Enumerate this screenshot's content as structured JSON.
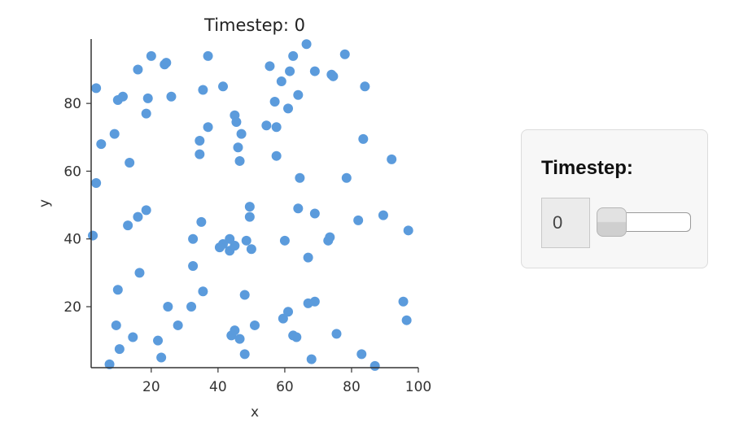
{
  "chart_data": {
    "type": "scatter",
    "title": "Timestep: 0",
    "xlabel": "x",
    "ylabel": "y",
    "xlim": [
      2,
      100
    ],
    "ylim": [
      2,
      99
    ],
    "xticks": [
      20,
      40,
      60,
      80,
      100
    ],
    "yticks": [
      20,
      40,
      60,
      80
    ],
    "xtick_labels": [
      "20",
      "40",
      "60",
      "80",
      "100"
    ],
    "ytick_labels": [
      "20",
      "40",
      "60",
      "80"
    ],
    "point_color": "#5b9bdc",
    "grid": false,
    "points": [
      {
        "x": 3.5,
        "y": 84.5
      },
      {
        "x": 3.5,
        "y": 56.5
      },
      {
        "x": 2.5,
        "y": 41
      },
      {
        "x": 5,
        "y": 68
      },
      {
        "x": 9,
        "y": 71
      },
      {
        "x": 10,
        "y": 81
      },
      {
        "x": 11.5,
        "y": 82
      },
      {
        "x": 13.5,
        "y": 62.5
      },
      {
        "x": 16,
        "y": 90
      },
      {
        "x": 20,
        "y": 94
      },
      {
        "x": 19,
        "y": 81.5
      },
      {
        "x": 18.5,
        "y": 77
      },
      {
        "x": 24,
        "y": 91.5
      },
      {
        "x": 24.5,
        "y": 92
      },
      {
        "x": 26,
        "y": 82
      },
      {
        "x": 13,
        "y": 44
      },
      {
        "x": 16,
        "y": 46.5
      },
      {
        "x": 18.5,
        "y": 48.5
      },
      {
        "x": 16.5,
        "y": 30
      },
      {
        "x": 10,
        "y": 25
      },
      {
        "x": 9.5,
        "y": 14.5
      },
      {
        "x": 10.5,
        "y": 7.5
      },
      {
        "x": 7.5,
        "y": 3
      },
      {
        "x": 14.5,
        "y": 11
      },
      {
        "x": 22,
        "y": 10
      },
      {
        "x": 23,
        "y": 5
      },
      {
        "x": 25,
        "y": 20
      },
      {
        "x": 28,
        "y": 14.5
      },
      {
        "x": 37,
        "y": 94
      },
      {
        "x": 35.5,
        "y": 84
      },
      {
        "x": 41.5,
        "y": 85
      },
      {
        "x": 37,
        "y": 73
      },
      {
        "x": 34.5,
        "y": 69
      },
      {
        "x": 34.5,
        "y": 65
      },
      {
        "x": 45,
        "y": 76.5
      },
      {
        "x": 45.5,
        "y": 74.5
      },
      {
        "x": 47,
        "y": 71
      },
      {
        "x": 46,
        "y": 67
      },
      {
        "x": 46.5,
        "y": 63
      },
      {
        "x": 32.5,
        "y": 40
      },
      {
        "x": 35,
        "y": 45
      },
      {
        "x": 41.5,
        "y": 38.5
      },
      {
        "x": 40.5,
        "y": 37.5
      },
      {
        "x": 43.5,
        "y": 40
      },
      {
        "x": 43.5,
        "y": 36.5
      },
      {
        "x": 45,
        "y": 38
      },
      {
        "x": 48.5,
        "y": 39.5
      },
      {
        "x": 50,
        "y": 37
      },
      {
        "x": 49.5,
        "y": 49.5
      },
      {
        "x": 49.5,
        "y": 46.5
      },
      {
        "x": 32.5,
        "y": 32
      },
      {
        "x": 35.5,
        "y": 24.5
      },
      {
        "x": 32,
        "y": 20
      },
      {
        "x": 48,
        "y": 23.5
      },
      {
        "x": 44,
        "y": 11.5
      },
      {
        "x": 45,
        "y": 13
      },
      {
        "x": 46.5,
        "y": 10.5
      },
      {
        "x": 48,
        "y": 6
      },
      {
        "x": 51,
        "y": 14.5
      },
      {
        "x": 55.5,
        "y": 91
      },
      {
        "x": 59,
        "y": 86.5
      },
      {
        "x": 61.5,
        "y": 89.5
      },
      {
        "x": 62.5,
        "y": 94
      },
      {
        "x": 66.5,
        "y": 97.5
      },
      {
        "x": 69,
        "y": 89.5
      },
      {
        "x": 57,
        "y": 80.5
      },
      {
        "x": 61,
        "y": 78.5
      },
      {
        "x": 64,
        "y": 82.5
      },
      {
        "x": 54.5,
        "y": 73.5
      },
      {
        "x": 57.5,
        "y": 73
      },
      {
        "x": 57.5,
        "y": 64.5
      },
      {
        "x": 64.5,
        "y": 58
      },
      {
        "x": 60,
        "y": 39.5
      },
      {
        "x": 64,
        "y": 49
      },
      {
        "x": 69,
        "y": 47.5
      },
      {
        "x": 67,
        "y": 34.5
      },
      {
        "x": 59.5,
        "y": 16.5
      },
      {
        "x": 61,
        "y": 18.5
      },
      {
        "x": 62.5,
        "y": 11.5
      },
      {
        "x": 63.5,
        "y": 11
      },
      {
        "x": 67,
        "y": 21
      },
      {
        "x": 69,
        "y": 21.5
      },
      {
        "x": 68,
        "y": 4.5
      },
      {
        "x": 74,
        "y": 88.5
      },
      {
        "x": 74.5,
        "y": 88
      },
      {
        "x": 78,
        "y": 94.5
      },
      {
        "x": 84,
        "y": 85
      },
      {
        "x": 83.5,
        "y": 69.5
      },
      {
        "x": 78.5,
        "y": 58
      },
      {
        "x": 92,
        "y": 63.5
      },
      {
        "x": 82,
        "y": 45.5
      },
      {
        "x": 89.5,
        "y": 47
      },
      {
        "x": 73,
        "y": 39.5
      },
      {
        "x": 73.5,
        "y": 40.5
      },
      {
        "x": 97,
        "y": 42.5
      },
      {
        "x": 75.5,
        "y": 12
      },
      {
        "x": 83,
        "y": 6
      },
      {
        "x": 87,
        "y": 2.5
      },
      {
        "x": 95.5,
        "y": 21.5
      },
      {
        "x": 96.5,
        "y": 16
      }
    ]
  },
  "widget": {
    "label": "Timestep:",
    "value": "0",
    "slider_fraction": 0
  }
}
